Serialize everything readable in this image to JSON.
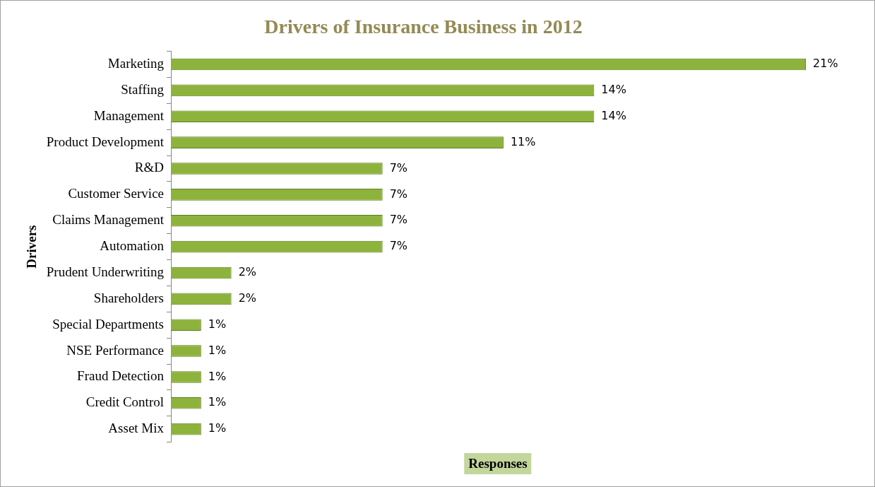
{
  "chart_data": {
    "type": "bar",
    "orientation": "horizontal",
    "title": "Drivers of Insurance Business in 2012",
    "xlabel": "Responses",
    "ylabel": "Drivers",
    "categories": [
      "Marketing",
      "Staffing",
      "Management",
      "Product Development",
      "R&D",
      "Customer Service",
      "Claims Management",
      "Automation",
      "Prudent Underwriting",
      "Shareholders",
      "Special Departments",
      "NSE Performance",
      "Fraud Detection",
      "Credit Control",
      "Asset Mix"
    ],
    "values": [
      21,
      14,
      14,
      11,
      7,
      7,
      7,
      7,
      2,
      2,
      1,
      1,
      1,
      1,
      1
    ],
    "value_labels": [
      "21%",
      "14%",
      "14%",
      "11%",
      "7%",
      "7%",
      "7%",
      "7%",
      "2%",
      "2%",
      "1%",
      "1%",
      "1%",
      "1%",
      "1%"
    ],
    "color": "#8db33c",
    "grid": false,
    "legend": false,
    "tick_labels": "y"
  }
}
